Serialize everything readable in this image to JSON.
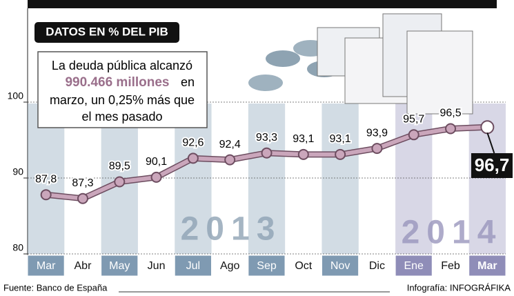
{
  "chart_data": {
    "type": "line",
    "badge": "DATOS EN % DEL PIB",
    "annotation": {
      "line1": "La deuda pública alcanzó",
      "highlight": "990.466 millones",
      "line2": "en",
      "line3": "marzo, un 0,25% más que",
      "line4": "el mes pasado"
    },
    "years": [
      "2013",
      "2014"
    ],
    "categories": [
      "Mar",
      "Abr",
      "May",
      "Jun",
      "Jul",
      "Ago",
      "Sep",
      "Oct",
      "Nov",
      "Dic",
      "Ene",
      "Feb",
      "Mar"
    ],
    "category_colors": [
      "#7f9ab2",
      "#ffffff",
      "#7f9ab2",
      "#ffffff",
      "#7f9ab2",
      "#ffffff",
      "#7f9ab2",
      "#ffffff",
      "#7f9ab2",
      "#ffffff",
      "#8f8db8",
      "#ffffff",
      "#8f8db8"
    ],
    "values": [
      87.8,
      87.3,
      89.5,
      90.1,
      92.6,
      92.4,
      93.3,
      93.1,
      93.1,
      93.9,
      95.7,
      96.5,
      96.7
    ],
    "value_labels": [
      "87,8",
      "87,3",
      "89,5",
      "90,1",
      "92,6",
      "92,4",
      "93,3",
      "93,1",
      "93,1",
      "93,9",
      "95,7",
      "96,5",
      "96,7"
    ],
    "color": "#caa6bb",
    "ylim": [
      80,
      110
    ],
    "yticks": [
      80,
      90,
      100
    ],
    "grid": true,
    "source": "Fuente: Banco de España",
    "credit": "Infografía: INFOGRÁFIKA"
  }
}
